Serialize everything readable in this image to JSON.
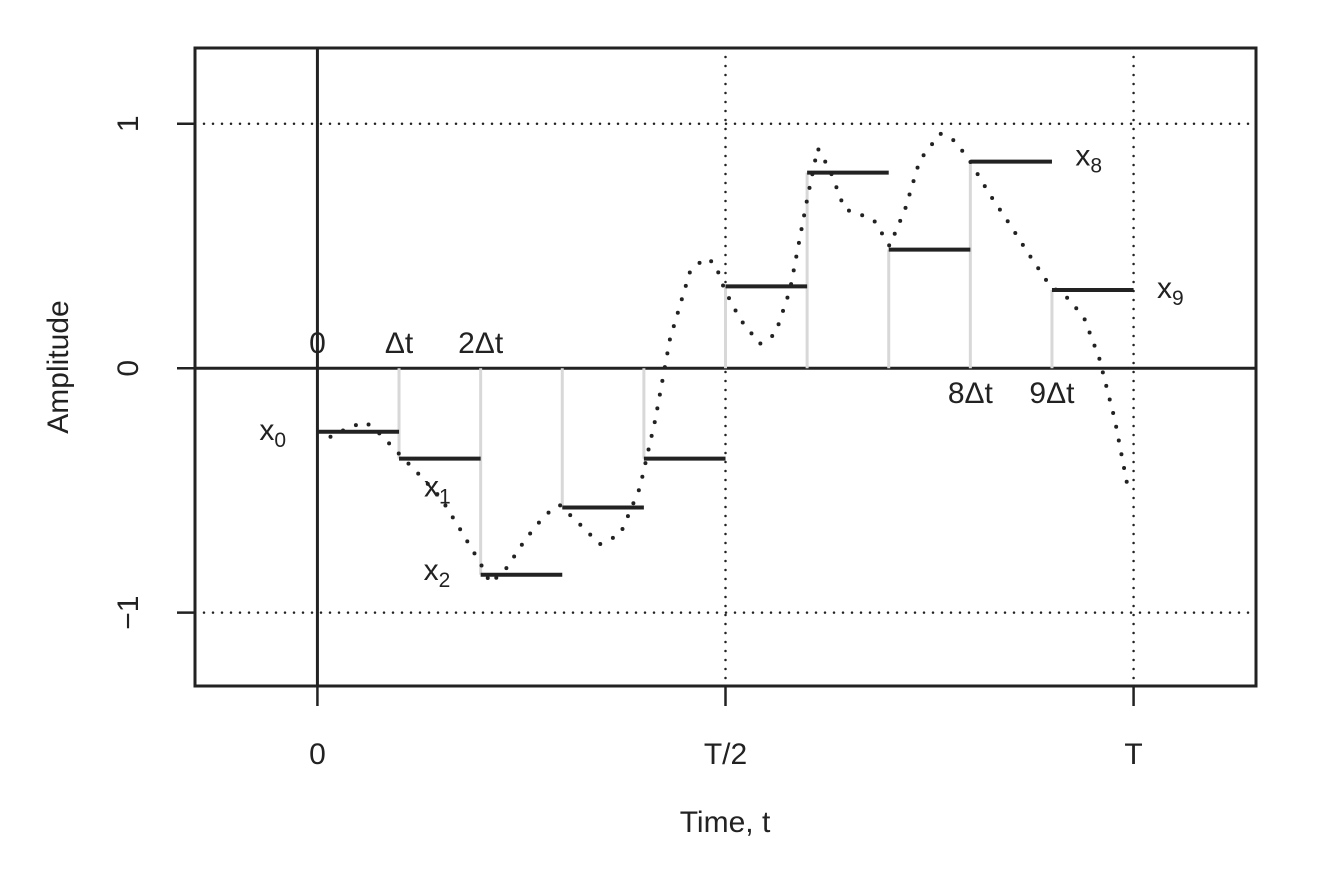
{
  "chart_data": {
    "type": "line",
    "x_label": "Time, t",
    "y_label": "Amplitude",
    "xlim": [
      -1.5,
      11.5
    ],
    "ylim": [
      -1.3,
      1.31
    ],
    "xticks": [
      {
        "value": 0,
        "label": "0"
      },
      {
        "value": 5,
        "label": "T/2"
      },
      {
        "value": 10,
        "label": "T"
      }
    ],
    "yticks": [
      {
        "value": -1,
        "label": "−1"
      },
      0,
      1
    ],
    "grid": true,
    "step_ticks": [
      {
        "value": 0,
        "label": "0"
      },
      {
        "value": 1,
        "label": "Δt"
      },
      {
        "value": 2,
        "label": "2Δt"
      },
      {
        "value": 8,
        "label": "8Δt"
      },
      {
        "value": 9,
        "label": "9Δt"
      }
    ],
    "step_labels": [
      {
        "text": "x",
        "sub": "0"
      },
      {
        "text": "x",
        "sub": "1"
      },
      {
        "text": "x",
        "sub": "2"
      },
      {
        "text": "x",
        "sub": "8"
      },
      {
        "text": "x",
        "sub": "9"
      }
    ],
    "series": [
      {
        "style": "step",
        "color": "#222222",
        "x": [
          0,
          1,
          2,
          3,
          4,
          5,
          6,
          7,
          8,
          9
        ],
        "values": [
          -0.26,
          -0.37,
          -0.845,
          -0.57,
          -0.37,
          0.335,
          0.8,
          0.485,
          0.845,
          0.32
        ]
      },
      {
        "style": "dotted",
        "color": "#222222",
        "x": [
          0.16,
          0.4,
          0.59,
          0.77,
          1.0,
          1.26,
          1.51,
          1.75,
          2.0,
          2.12,
          2.31,
          2.55,
          2.79,
          2.97,
          3.22,
          3.46,
          3.71,
          3.95,
          4.14,
          4.32,
          4.57,
          4.75,
          4.87,
          4.99,
          5.18,
          5.42,
          5.61,
          5.79,
          6.0,
          6.13,
          6.28,
          6.46,
          6.65,
          6.83,
          7.01,
          7.2,
          7.38,
          7.63,
          7.81,
          7.99,
          8.24,
          8.48,
          8.73,
          8.97,
          9.22,
          9.4,
          9.58,
          9.77,
          9.93
        ],
        "values": [
          -0.28,
          -0.24,
          -0.22,
          -0.27,
          -0.35,
          -0.44,
          -0.53,
          -0.66,
          -0.8,
          -0.88,
          -0.82,
          -0.7,
          -0.6,
          -0.56,
          -0.64,
          -0.72,
          -0.68,
          -0.49,
          -0.21,
          0.12,
          0.4,
          0.45,
          0.43,
          0.32,
          0.2,
          0.1,
          0.14,
          0.32,
          0.69,
          0.9,
          0.81,
          0.65,
          0.63,
          0.6,
          0.5,
          0.65,
          0.85,
          0.96,
          0.93,
          0.85,
          0.71,
          0.59,
          0.46,
          0.34,
          0.28,
          0.2,
          0.04,
          -0.21,
          -0.49
        ]
      }
    ]
  }
}
